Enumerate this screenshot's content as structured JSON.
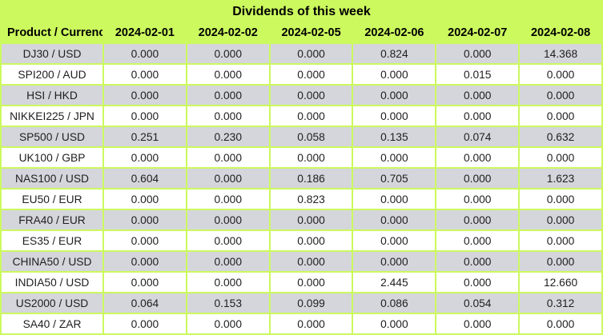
{
  "colors": {
    "accent_green": "#ccf95e",
    "row_gray": "#d5d5dc",
    "row_white": "#ffffff",
    "text": "#1f1f1f",
    "header_text": "#000000"
  },
  "chart_data": {
    "type": "table",
    "title": "Dividends of this week",
    "columns": [
      "Product / Currency",
      "2024-02-01",
      "2024-02-02",
      "2024-02-05",
      "2024-02-06",
      "2024-02-07",
      "2024-02-08"
    ],
    "rows": [
      {
        "product": "DJ30 / USD",
        "values": [
          "0.000",
          "0.000",
          "0.000",
          "0.824",
          "0.000",
          "14.368"
        ]
      },
      {
        "product": "SPI200 / AUD",
        "values": [
          "0.000",
          "0.000",
          "0.000",
          "0.000",
          "0.015",
          "0.000"
        ]
      },
      {
        "product": "HSI / HKD",
        "values": [
          "0.000",
          "0.000",
          "0.000",
          "0.000",
          "0.000",
          "0.000"
        ]
      },
      {
        "product": "NIKKEI225 / JPN",
        "values": [
          "0.000",
          "0.000",
          "0.000",
          "0.000",
          "0.000",
          "0.000"
        ]
      },
      {
        "product": "SP500 / USD",
        "values": [
          "0.251",
          "0.230",
          "0.058",
          "0.135",
          "0.074",
          "0.632"
        ]
      },
      {
        "product": "UK100 / GBP",
        "values": [
          "0.000",
          "0.000",
          "0.000",
          "0.000",
          "0.000",
          "0.000"
        ]
      },
      {
        "product": "NAS100 / USD",
        "values": [
          "0.604",
          "0.000",
          "0.186",
          "0.705",
          "0.000",
          "1.623"
        ]
      },
      {
        "product": "EU50 / EUR",
        "values": [
          "0.000",
          "0.000",
          "0.823",
          "0.000",
          "0.000",
          "0.000"
        ]
      },
      {
        "product": "FRA40 / EUR",
        "values": [
          "0.000",
          "0.000",
          "0.000",
          "0.000",
          "0.000",
          "0.000"
        ]
      },
      {
        "product": "ES35 / EUR",
        "values": [
          "0.000",
          "0.000",
          "0.000",
          "0.000",
          "0.000",
          "0.000"
        ]
      },
      {
        "product": "CHINA50 / USD",
        "values": [
          "0.000",
          "0.000",
          "0.000",
          "0.000",
          "0.000",
          "0.000"
        ]
      },
      {
        "product": "INDIA50 / USD",
        "values": [
          "0.000",
          "0.000",
          "0.000",
          "2.445",
          "0.000",
          "12.660"
        ]
      },
      {
        "product": "US2000 / USD",
        "values": [
          "0.064",
          "0.153",
          "0.099",
          "0.086",
          "0.054",
          "0.312"
        ]
      },
      {
        "product": "SA40 / ZAR",
        "values": [
          "0.000",
          "0.000",
          "0.000",
          "0.000",
          "0.000",
          "0.000"
        ]
      }
    ]
  }
}
